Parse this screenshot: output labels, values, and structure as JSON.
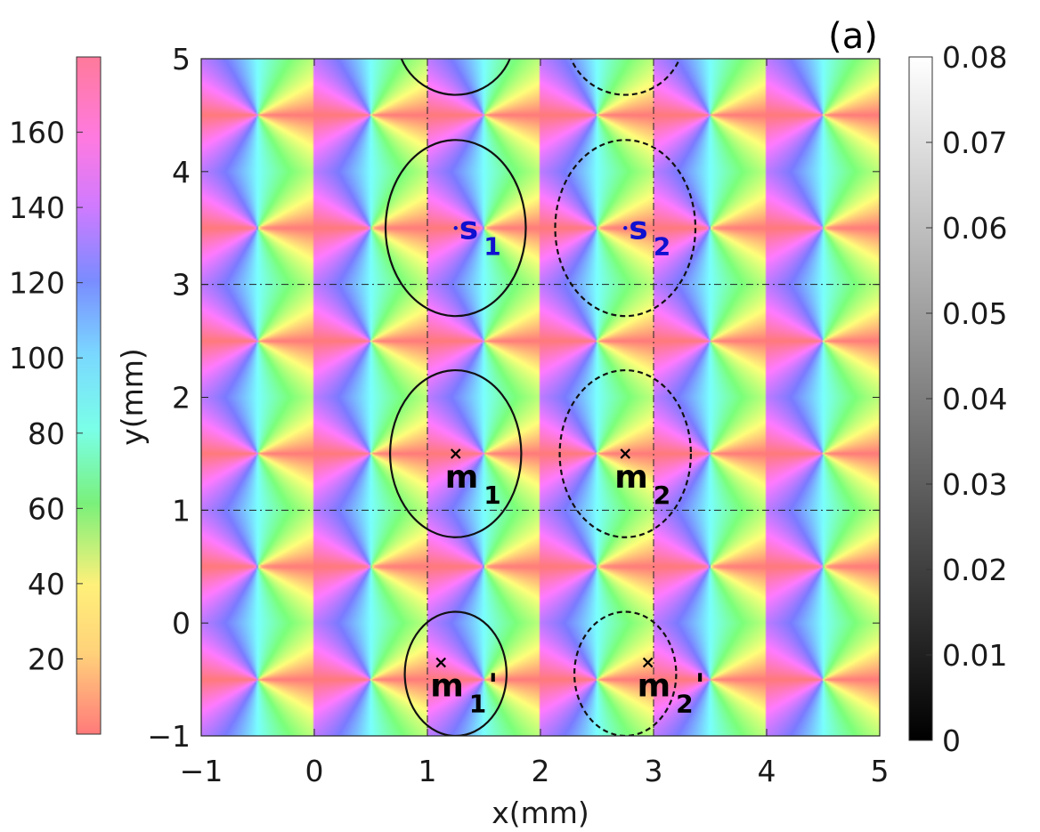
{
  "chart_data": {
    "type": "heatmap",
    "panel_label": "(a)",
    "xlabel": "x(mm)",
    "ylabel": "y(mm)",
    "xlim": [
      -1,
      5
    ],
    "ylim": [
      -1,
      5
    ],
    "xticks": [
      -1,
      0,
      1,
      2,
      3,
      4,
      5
    ],
    "yticks": [
      -1,
      0,
      1,
      2,
      3,
      4,
      5
    ],
    "hue_colorbar": {
      "range": [
        0,
        180
      ],
      "ticks": [
        20,
        40,
        60,
        80,
        100,
        120,
        140,
        160
      ]
    },
    "gray_colorbar": {
      "range": [
        0,
        0.08
      ],
      "ticks": [
        "0",
        "0.01",
        "0.02",
        "0.03",
        "0.04",
        "0.05",
        "0.06",
        "0.07",
        "0.08"
      ]
    },
    "vortex_lattice": {
      "x_period": 1.0,
      "y_period": 1.0,
      "x_offset": -0.5,
      "y_offset": -0.5
    },
    "dashed_lines": {
      "vertical_x": [
        1,
        3
      ],
      "horizontal_y": [
        1,
        3
      ]
    },
    "markers": [
      {
        "id": "s1",
        "main": "s",
        "sub": "1",
        "prime": "",
        "x": 1.25,
        "y": 3.5,
        "color": "#1010d0",
        "symbol": "dot"
      },
      {
        "id": "s2",
        "main": "s",
        "sub": "2",
        "prime": "",
        "x": 2.75,
        "y": 3.5,
        "color": "#1010d0",
        "symbol": "dot"
      },
      {
        "id": "m1",
        "main": "m",
        "sub": "1",
        "prime": "",
        "x": 1.25,
        "y": 1.5,
        "color": "#000000",
        "symbol": "cross"
      },
      {
        "id": "m2",
        "main": "m",
        "sub": "2",
        "prime": "",
        "x": 2.75,
        "y": 1.5,
        "color": "#000000",
        "symbol": "cross"
      },
      {
        "id": "m1p",
        "main": "m",
        "sub": "1",
        "prime": "'",
        "x": 1.12,
        "y": -0.35,
        "color": "#000000",
        "symbol": "cross"
      },
      {
        "id": "m2p",
        "main": "m",
        "sub": "2",
        "prime": "'",
        "x": 2.95,
        "y": -0.35,
        "color": "#000000",
        "symbol": "cross"
      }
    ],
    "contours": [
      {
        "cx": 1.25,
        "cy": 3.5,
        "rx": 0.62,
        "ry": 0.78,
        "style": "solid"
      },
      {
        "cx": 2.75,
        "cy": 3.5,
        "rx": 0.62,
        "ry": 0.78,
        "style": "dashed"
      },
      {
        "cx": 1.25,
        "cy": 1.5,
        "rx": 0.58,
        "ry": 0.74,
        "style": "solid"
      },
      {
        "cx": 2.75,
        "cy": 1.5,
        "rx": 0.58,
        "ry": 0.74,
        "style": "dashed"
      },
      {
        "cx": 1.25,
        "cy": -0.45,
        "rx": 0.45,
        "ry": 0.55,
        "style": "solid"
      },
      {
        "cx": 2.75,
        "cy": -0.45,
        "rx": 0.45,
        "ry": 0.55,
        "style": "dashed"
      },
      {
        "cx": 1.25,
        "cy": 5.2,
        "rx": 0.52,
        "ry": 0.52,
        "style": "solid"
      },
      {
        "cx": 2.75,
        "cy": 5.2,
        "rx": 0.52,
        "ry": 0.52,
        "style": "dashed"
      }
    ]
  }
}
